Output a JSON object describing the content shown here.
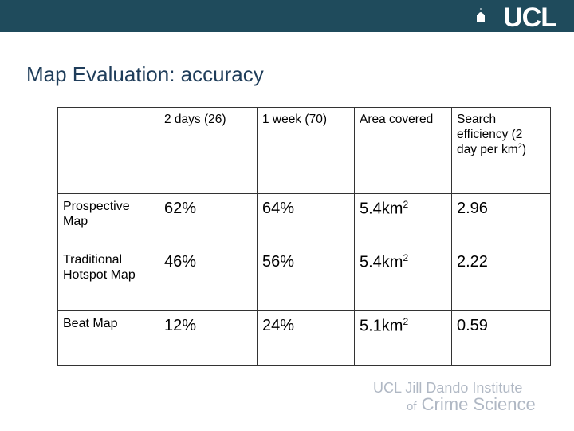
{
  "header": {
    "logo": "UCL"
  },
  "title": "Map Evaluation: accuracy",
  "table": {
    "columns": [
      {
        "text": ""
      },
      {
        "text": "2 days (26)"
      },
      {
        "text": "1 week (70)"
      },
      {
        "text": "Area covered"
      },
      {
        "text": "Search efficiency (2 day per km",
        "sup": "2",
        "tail": ")"
      }
    ],
    "rows": [
      [
        {
          "text": "Prospective Map"
        },
        {
          "text": "62%"
        },
        {
          "text": "64%"
        },
        {
          "text": "5.4km",
          "sup": "2"
        },
        {
          "text": "2.96"
        }
      ],
      [
        {
          "text": "Traditional Hotspot Map"
        },
        {
          "text": "46%"
        },
        {
          "text": "56%"
        },
        {
          "text": "5.4km",
          "sup": "2"
        },
        {
          "text": "2.22"
        }
      ],
      [
        {
          "text": "Beat Map"
        },
        {
          "text": "12%"
        },
        {
          "text": "24%"
        },
        {
          "text": "5.1km",
          "sup": "2"
        },
        {
          "text": "0.59"
        }
      ]
    ]
  },
  "footer": {
    "line1": "UCL Jill Dando Institute",
    "line2_prefix": "of",
    "line2": "Crime Science"
  }
}
